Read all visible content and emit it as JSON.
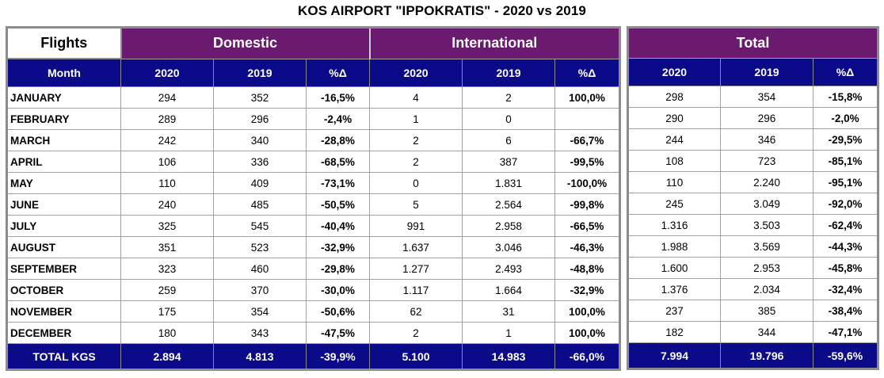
{
  "title": "KOS AIRPORT \"IPPOKRATIS\" - 2020 vs 2019",
  "headers": {
    "flights": "Flights",
    "domestic": "Domestic",
    "international": "International",
    "total": "Total",
    "month": "Month",
    "y2020": "2020",
    "y2019": "2019",
    "pct": "%Δ"
  },
  "rows": [
    {
      "month": "JANUARY",
      "dom2020": "294",
      "dom2019": "352",
      "domPct": "-16,5%",
      "int2020": "4",
      "int2019": "2",
      "intPct": "100,0%",
      "tot2020": "298",
      "tot2019": "354",
      "totPct": "-15,8%"
    },
    {
      "month": "FEBRUARY",
      "dom2020": "289",
      "dom2019": "296",
      "domPct": "-2,4%",
      "int2020": "1",
      "int2019": "0",
      "intPct": "",
      "tot2020": "290",
      "tot2019": "296",
      "totPct": "-2,0%"
    },
    {
      "month": "MARCH",
      "dom2020": "242",
      "dom2019": "340",
      "domPct": "-28,8%",
      "int2020": "2",
      "int2019": "6",
      "intPct": "-66,7%",
      "tot2020": "244",
      "tot2019": "346",
      "totPct": "-29,5%"
    },
    {
      "month": "APRIL",
      "dom2020": "106",
      "dom2019": "336",
      "domPct": "-68,5%",
      "int2020": "2",
      "int2019": "387",
      "intPct": "-99,5%",
      "tot2020": "108",
      "tot2019": "723",
      "totPct": "-85,1%"
    },
    {
      "month": "MAY",
      "dom2020": "110",
      "dom2019": "409",
      "domPct": "-73,1%",
      "int2020": "0",
      "int2019": "1.831",
      "intPct": "-100,0%",
      "tot2020": "110",
      "tot2019": "2.240",
      "totPct": "-95,1%"
    },
    {
      "month": "JUNE",
      "dom2020": "240",
      "dom2019": "485",
      "domPct": "-50,5%",
      "int2020": "5",
      "int2019": "2.564",
      "intPct": "-99,8%",
      "tot2020": "245",
      "tot2019": "3.049",
      "totPct": "-92,0%"
    },
    {
      "month": "JULY",
      "dom2020": "325",
      "dom2019": "545",
      "domPct": "-40,4%",
      "int2020": "991",
      "int2019": "2.958",
      "intPct": "-66,5%",
      "tot2020": "1.316",
      "tot2019": "3.503",
      "totPct": "-62,4%"
    },
    {
      "month": "AUGUST",
      "dom2020": "351",
      "dom2019": "523",
      "domPct": "-32,9%",
      "int2020": "1.637",
      "int2019": "3.046",
      "intPct": "-46,3%",
      "tot2020": "1.988",
      "tot2019": "3.569",
      "totPct": "-44,3%"
    },
    {
      "month": "SEPTEMBER",
      "dom2020": "323",
      "dom2019": "460",
      "domPct": "-29,8%",
      "int2020": "1.277",
      "int2019": "2.493",
      "intPct": "-48,8%",
      "tot2020": "1.600",
      "tot2019": "2.953",
      "totPct": "-45,8%"
    },
    {
      "month": "OCTOBER",
      "dom2020": "259",
      "dom2019": "370",
      "domPct": "-30,0%",
      "int2020": "1.117",
      "int2019": "1.664",
      "intPct": "-32,9%",
      "tot2020": "1.376",
      "tot2019": "2.034",
      "totPct": "-32,4%"
    },
    {
      "month": "NOVEMBER",
      "dom2020": "175",
      "dom2019": "354",
      "domPct": "-50,6%",
      "int2020": "62",
      "int2019": "31",
      "intPct": "100,0%",
      "tot2020": "237",
      "tot2019": "385",
      "totPct": "-38,4%"
    },
    {
      "month": "DECEMBER",
      "dom2020": "180",
      "dom2019": "343",
      "domPct": "-47,5%",
      "int2020": "2",
      "int2019": "1",
      "intPct": "100,0%",
      "tot2020": "182",
      "tot2019": "344",
      "totPct": "-47,1%"
    }
  ],
  "totals": {
    "label": "TOTAL KGS",
    "dom2020": "2.894",
    "dom2019": "4.813",
    "domPct": "-39,9%",
    "int2020": "5.100",
    "int2019": "14.983",
    "intPct": "-66,0%",
    "tot2020": "7.994",
    "tot2019": "19.796",
    "totPct": "-59,6%"
  },
  "colors": {
    "group_header": "#6a1a6f",
    "sub_header": "#0b0b8a",
    "border": "#8c8c8c"
  }
}
